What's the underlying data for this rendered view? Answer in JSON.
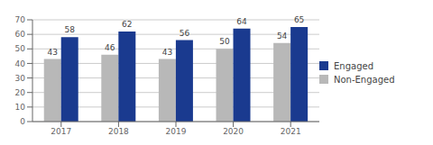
{
  "chart_data": {
    "type": "bar",
    "categories": [
      "2017",
      "2018",
      "2019",
      "2020",
      "2021"
    ],
    "series": [
      {
        "name": "Non-Engaged",
        "color": "#b8b8b8",
        "values": [
          43,
          46,
          43,
          50,
          54
        ]
      },
      {
        "name": "Engaged",
        "color": "#1a3a8f",
        "values": [
          58,
          62,
          56,
          64,
          65
        ]
      }
    ],
    "ylim": [
      0,
      70
    ],
    "yticks": [
      0,
      10,
      20,
      30,
      40,
      50,
      60,
      70
    ],
    "grid": true,
    "data_labels": true,
    "legend": "right"
  }
}
